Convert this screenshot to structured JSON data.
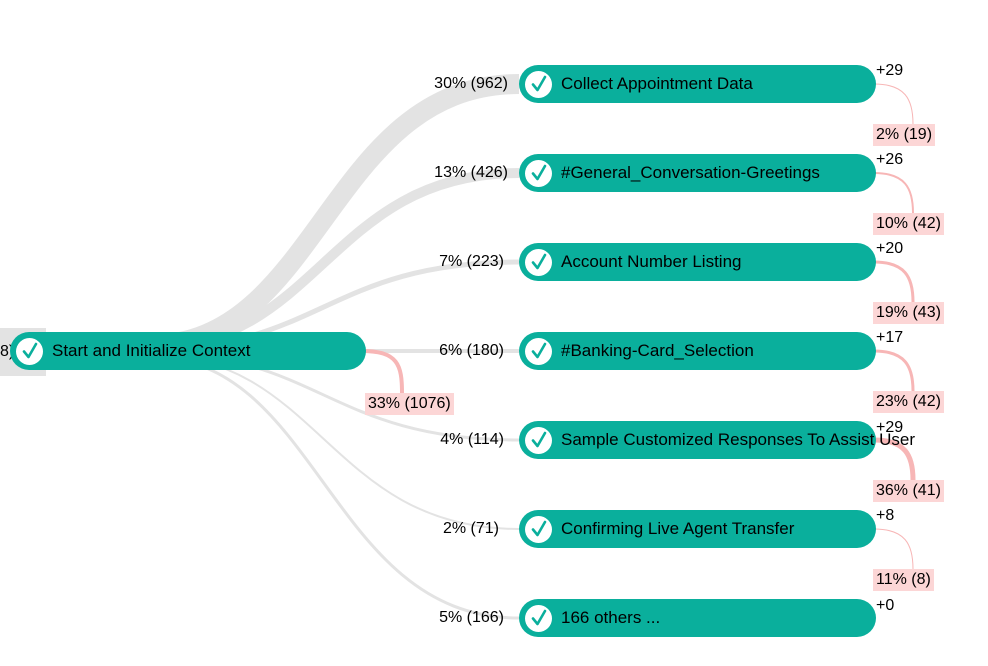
{
  "root": {
    "label": "Start and Initialize Context",
    "left_fragment": "8)",
    "dropoff": "33% (1076)"
  },
  "children": [
    {
      "label": "Collect Appointment Data",
      "flow": "30% (962)",
      "plus": "+29",
      "dropoff": "2% (19)"
    },
    {
      "label": "#General_Conversation-Greetings",
      "flow": "13% (426)",
      "plus": "+26",
      "dropoff": "10% (42)"
    },
    {
      "label": "Account Number Listing",
      "flow": "7% (223)",
      "plus": "+20",
      "dropoff": "19% (43)"
    },
    {
      "label": "#Banking-Card_Selection",
      "flow": "6% (180)",
      "plus": "+17",
      "dropoff": "23% (42)"
    },
    {
      "label": "Sample Customized Responses To Assist User",
      "flow": "4% (114)",
      "plus": "+29",
      "dropoff": "36% (41)"
    },
    {
      "label": "Confirming Live Agent Transfer",
      "flow": "2% (71)",
      "plus": "+8",
      "dropoff": "11% (8)"
    },
    {
      "label": "166 others ...",
      "flow": "5% (166)",
      "plus": "+0",
      "dropoff": ""
    }
  ],
  "colors": {
    "node": "#0aaf9c",
    "flow": "#e3e3e3",
    "dropoff_fill": "#fcd6d6",
    "dropoff_line": "#f7b6b6"
  }
}
